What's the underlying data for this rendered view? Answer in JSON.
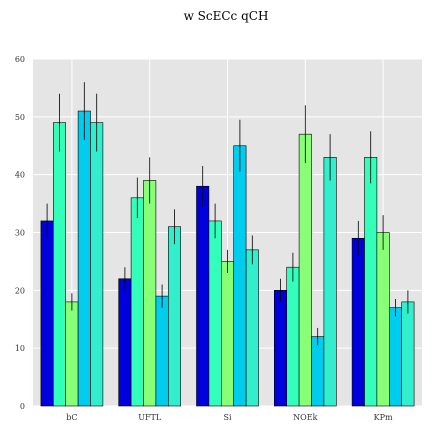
{
  "chart_data": {
    "type": "bar",
    "title": "w ScECc qCH",
    "xlabel": "",
    "ylabel": "",
    "categories": [
      "bC",
      "UFTL",
      "Si",
      "NOEk",
      "KPm"
    ],
    "ylim": [
      0,
      60
    ],
    "yticks": [
      0,
      10,
      20,
      30,
      40,
      50,
      60
    ],
    "grid": true,
    "background": "#e5e5e5",
    "series": [
      {
        "color": "#0000dd",
        "values": [
          32,
          22,
          38,
          20,
          29
        ],
        "errors": [
          3,
          2,
          3.5,
          2,
          3
        ]
      },
      {
        "color": "#33ffbb",
        "values": [
          49,
          36,
          32,
          24,
          43
        ],
        "errors": [
          5,
          3.5,
          3,
          2.5,
          4.5
        ]
      },
      {
        "color": "#88ff77",
        "values": [
          18,
          39,
          25,
          47,
          30
        ],
        "errors": [
          1.5,
          4,
          2,
          5,
          3
        ]
      },
      {
        "color": "#00ccee",
        "values": [
          51,
          19,
          45,
          12,
          17
        ],
        "errors": [
          5,
          2,
          4.5,
          1.5,
          1.5
        ]
      },
      {
        "color": "#33eecc",
        "values": [
          49,
          31,
          27,
          43,
          18
        ],
        "errors": [
          5,
          3,
          2.5,
          4,
          2
        ]
      }
    ]
  }
}
